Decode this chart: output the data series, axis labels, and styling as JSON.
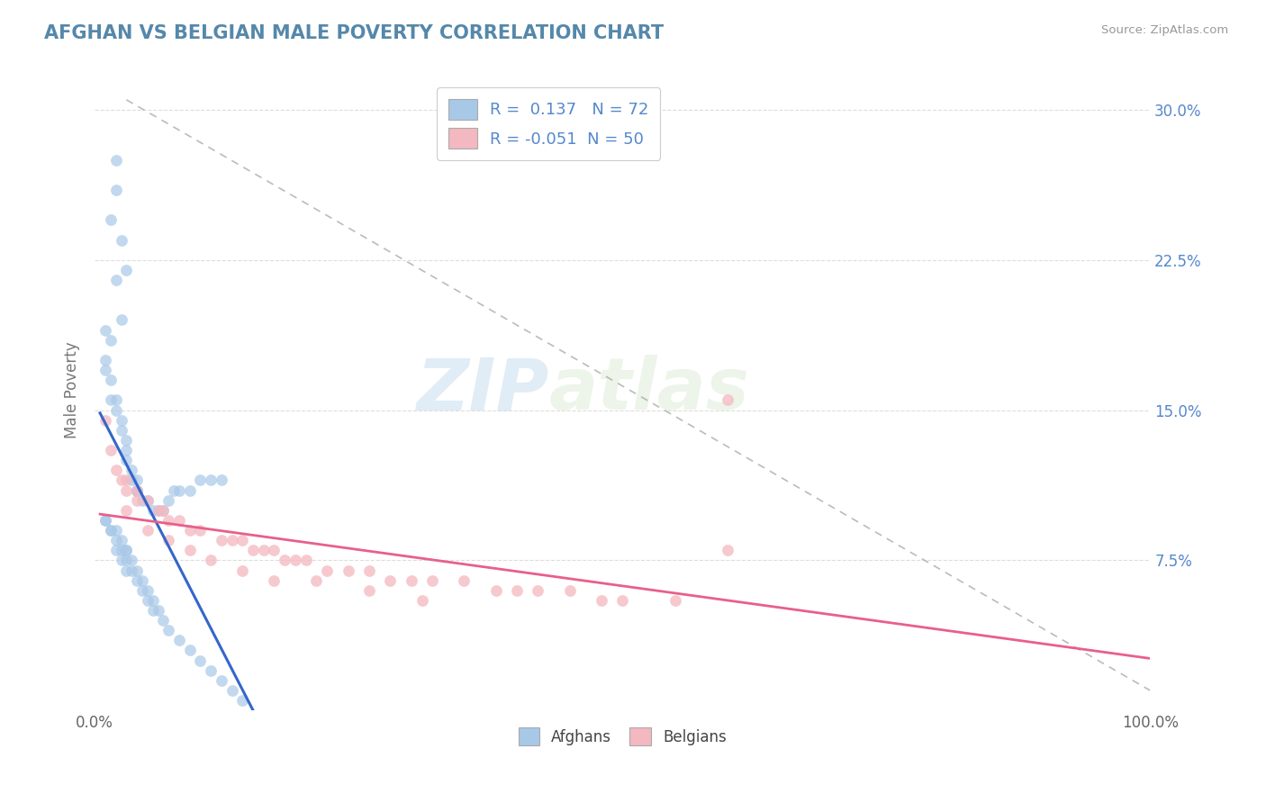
{
  "title": "AFGHAN VS BELGIAN MALE POVERTY CORRELATION CHART",
  "source": "Source: ZipAtlas.com",
  "ylabel": "Male Poverty",
  "xlim": [
    0.0,
    1.0
  ],
  "ylim": [
    0.0,
    0.32
  ],
  "ytick_vals": [
    0.075,
    0.15,
    0.225,
    0.3
  ],
  "ytick_labels": [
    "7.5%",
    "15.0%",
    "22.5%",
    "30.0%"
  ],
  "xtick_vals": [
    0.0,
    1.0
  ],
  "xtick_labels": [
    "0.0%",
    "100.0%"
  ],
  "afghan_color": "#a8c8e8",
  "belgian_color": "#f4b8c0",
  "afghan_R": 0.137,
  "afghan_N": 72,
  "belgian_R": -0.051,
  "belgian_N": 50,
  "trend_afghan_color": "#3366cc",
  "trend_belgian_color": "#e8608a",
  "watermark_zip": "ZIP",
  "watermark_atlas": "atlas",
  "legend_label_afghan": "Afghans",
  "legend_label_belgian": "Belgians",
  "tick_color": "#5588cc",
  "title_color": "#5588aa",
  "afghan_x": [
    0.02,
    0.02,
    0.015,
    0.025,
    0.03,
    0.02,
    0.025,
    0.01,
    0.015,
    0.01,
    0.01,
    0.015,
    0.015,
    0.02,
    0.02,
    0.025,
    0.025,
    0.03,
    0.03,
    0.03,
    0.035,
    0.035,
    0.04,
    0.04,
    0.04,
    0.04,
    0.045,
    0.05,
    0.055,
    0.06,
    0.065,
    0.07,
    0.075,
    0.08,
    0.09,
    0.1,
    0.11,
    0.12,
    0.01,
    0.015,
    0.02,
    0.02,
    0.025,
    0.025,
    0.03,
    0.03,
    0.03,
    0.035,
    0.035,
    0.04,
    0.04,
    0.045,
    0.045,
    0.05,
    0.05,
    0.055,
    0.055,
    0.06,
    0.065,
    0.07,
    0.08,
    0.09,
    0.1,
    0.11,
    0.12,
    0.13,
    0.14,
    0.01,
    0.015,
    0.02,
    0.025,
    0.03
  ],
  "afghan_y": [
    0.275,
    0.26,
    0.245,
    0.235,
    0.22,
    0.215,
    0.195,
    0.19,
    0.185,
    0.175,
    0.17,
    0.165,
    0.155,
    0.155,
    0.15,
    0.145,
    0.14,
    0.135,
    0.13,
    0.125,
    0.12,
    0.115,
    0.115,
    0.11,
    0.11,
    0.11,
    0.105,
    0.105,
    0.1,
    0.1,
    0.1,
    0.105,
    0.11,
    0.11,
    0.11,
    0.115,
    0.115,
    0.115,
    0.095,
    0.09,
    0.09,
    0.085,
    0.085,
    0.08,
    0.08,
    0.08,
    0.075,
    0.075,
    0.07,
    0.07,
    0.065,
    0.065,
    0.06,
    0.06,
    0.055,
    0.055,
    0.05,
    0.05,
    0.045,
    0.04,
    0.035,
    0.03,
    0.025,
    0.02,
    0.015,
    0.01,
    0.005,
    0.095,
    0.09,
    0.08,
    0.075,
    0.07
  ],
  "belgian_x": [
    0.01,
    0.015,
    0.02,
    0.025,
    0.03,
    0.03,
    0.04,
    0.04,
    0.05,
    0.06,
    0.065,
    0.07,
    0.08,
    0.09,
    0.1,
    0.12,
    0.13,
    0.14,
    0.15,
    0.16,
    0.17,
    0.18,
    0.19,
    0.2,
    0.22,
    0.24,
    0.26,
    0.28,
    0.3,
    0.32,
    0.35,
    0.38,
    0.4,
    0.42,
    0.45,
    0.48,
    0.5,
    0.55,
    0.6,
    0.6,
    0.03,
    0.05,
    0.07,
    0.09,
    0.11,
    0.14,
    0.17,
    0.21,
    0.26,
    0.31
  ],
  "belgian_y": [
    0.145,
    0.13,
    0.12,
    0.115,
    0.115,
    0.11,
    0.11,
    0.105,
    0.105,
    0.1,
    0.1,
    0.095,
    0.095,
    0.09,
    0.09,
    0.085,
    0.085,
    0.085,
    0.08,
    0.08,
    0.08,
    0.075,
    0.075,
    0.075,
    0.07,
    0.07,
    0.07,
    0.065,
    0.065,
    0.065,
    0.065,
    0.06,
    0.06,
    0.06,
    0.06,
    0.055,
    0.055,
    0.055,
    0.08,
    0.155,
    0.1,
    0.09,
    0.085,
    0.08,
    0.075,
    0.07,
    0.065,
    0.065,
    0.06,
    0.055
  ],
  "ref_line": [
    [
      0.03,
      0.3
    ],
    [
      0.28,
      0.295
    ]
  ],
  "grid_color": "#dddddd",
  "border_color": "#cccccc"
}
